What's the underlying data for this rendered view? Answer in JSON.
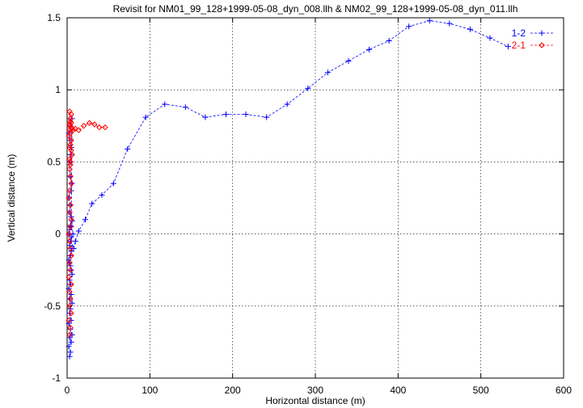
{
  "chart_data": {
    "type": "line",
    "title": "Revisit for NM01_99_128+1999-05-08_dyn_008.llh & NM02_99_128+1999-05-08_dyn_011.llh",
    "xlabel": "Horizontal distance (m)",
    "ylabel": "Vertical distance (m)",
    "xlim": [
      0,
      600
    ],
    "ylim": [
      -1,
      1.5
    ],
    "xticks": [
      "0",
      "100",
      "200",
      "300",
      "400",
      "500",
      "600"
    ],
    "yticks": [
      "-1",
      "-0.5",
      "0",
      "0.5",
      "1",
      "1.5"
    ],
    "grid": true,
    "legend_position": "top-right",
    "series": [
      {
        "name": "1-2",
        "color": "#0000ff",
        "marker": "plus",
        "x": [
          3,
          4,
          2,
          5,
          3,
          6,
          4,
          2,
          5,
          3,
          4,
          6,
          3,
          5,
          2,
          4,
          3,
          6,
          5,
          4,
          3,
          2,
          4,
          5,
          6,
          3,
          4,
          5,
          2,
          3,
          4,
          6,
          5,
          3,
          4,
          2,
          5,
          6,
          4,
          3,
          4,
          5,
          3,
          2,
          4,
          6,
          5,
          7,
          5,
          8,
          10,
          14,
          22,
          30,
          42,
          56,
          73,
          95,
          118,
          143,
          167,
          192,
          216,
          241,
          266,
          291,
          315,
          340,
          365,
          389,
          413,
          438,
          462,
          487,
          511,
          533
        ],
        "y": [
          -0.85,
          -0.82,
          -0.78,
          -0.75,
          -0.72,
          -0.7,
          -0.66,
          -0.62,
          -0.6,
          -0.55,
          -0.52,
          -0.48,
          -0.45,
          -0.42,
          -0.38,
          -0.35,
          -0.32,
          -0.28,
          -0.25,
          -0.22,
          -0.2,
          -0.18,
          -0.15,
          -0.12,
          -0.1,
          -0.08,
          -0.05,
          -0.02,
          0.0,
          0.03,
          0.06,
          0.09,
          0.12,
          0.15,
          0.2,
          0.25,
          0.3,
          0.35,
          0.4,
          0.5,
          0.55,
          0.6,
          0.65,
          0.7,
          0.75,
          0.8,
          0.05,
          0.0,
          -0.05,
          -0.1,
          -0.05,
          0.02,
          0.1,
          0.21,
          0.27,
          0.35,
          0.59,
          0.81,
          0.9,
          0.88,
          0.81,
          0.83,
          0.83,
          0.81,
          0.9,
          1.01,
          1.12,
          1.2,
          1.28,
          1.34,
          1.44,
          1.48,
          1.46,
          1.42,
          1.36,
          1.3
        ]
      },
      {
        "name": "2-1",
        "color": "#ff0000",
        "marker": "diamond",
        "x": [
          3,
          4,
          2,
          5,
          3,
          4,
          3,
          5,
          2,
          4,
          3,
          5,
          4,
          3,
          2,
          4,
          5,
          3,
          4,
          2,
          3,
          5,
          4,
          3,
          4,
          6,
          3,
          5,
          4,
          3,
          4,
          3,
          5,
          4,
          3,
          2,
          4,
          5,
          3,
          4,
          6,
          5,
          4,
          3,
          5,
          7,
          10,
          14,
          20,
          27,
          33,
          39,
          46
        ],
        "y": [
          -0.7,
          -0.65,
          -0.6,
          -0.55,
          -0.5,
          -0.45,
          -0.4,
          -0.35,
          -0.3,
          -0.25,
          -0.2,
          -0.15,
          -0.1,
          -0.05,
          0.0,
          0.05,
          0.1,
          0.15,
          0.2,
          0.25,
          0.3,
          0.35,
          0.4,
          0.45,
          0.5,
          0.55,
          0.6,
          0.65,
          0.7,
          0.75,
          0.8,
          0.85,
          0.83,
          0.78,
          0.72,
          0.68,
          0.62,
          0.58,
          0.52,
          0.48,
          0.73,
          0.77,
          0.8,
          0.76,
          0.74,
          0.72,
          0.73,
          0.72,
          0.75,
          0.77,
          0.76,
          0.74,
          0.74
        ]
      }
    ]
  }
}
